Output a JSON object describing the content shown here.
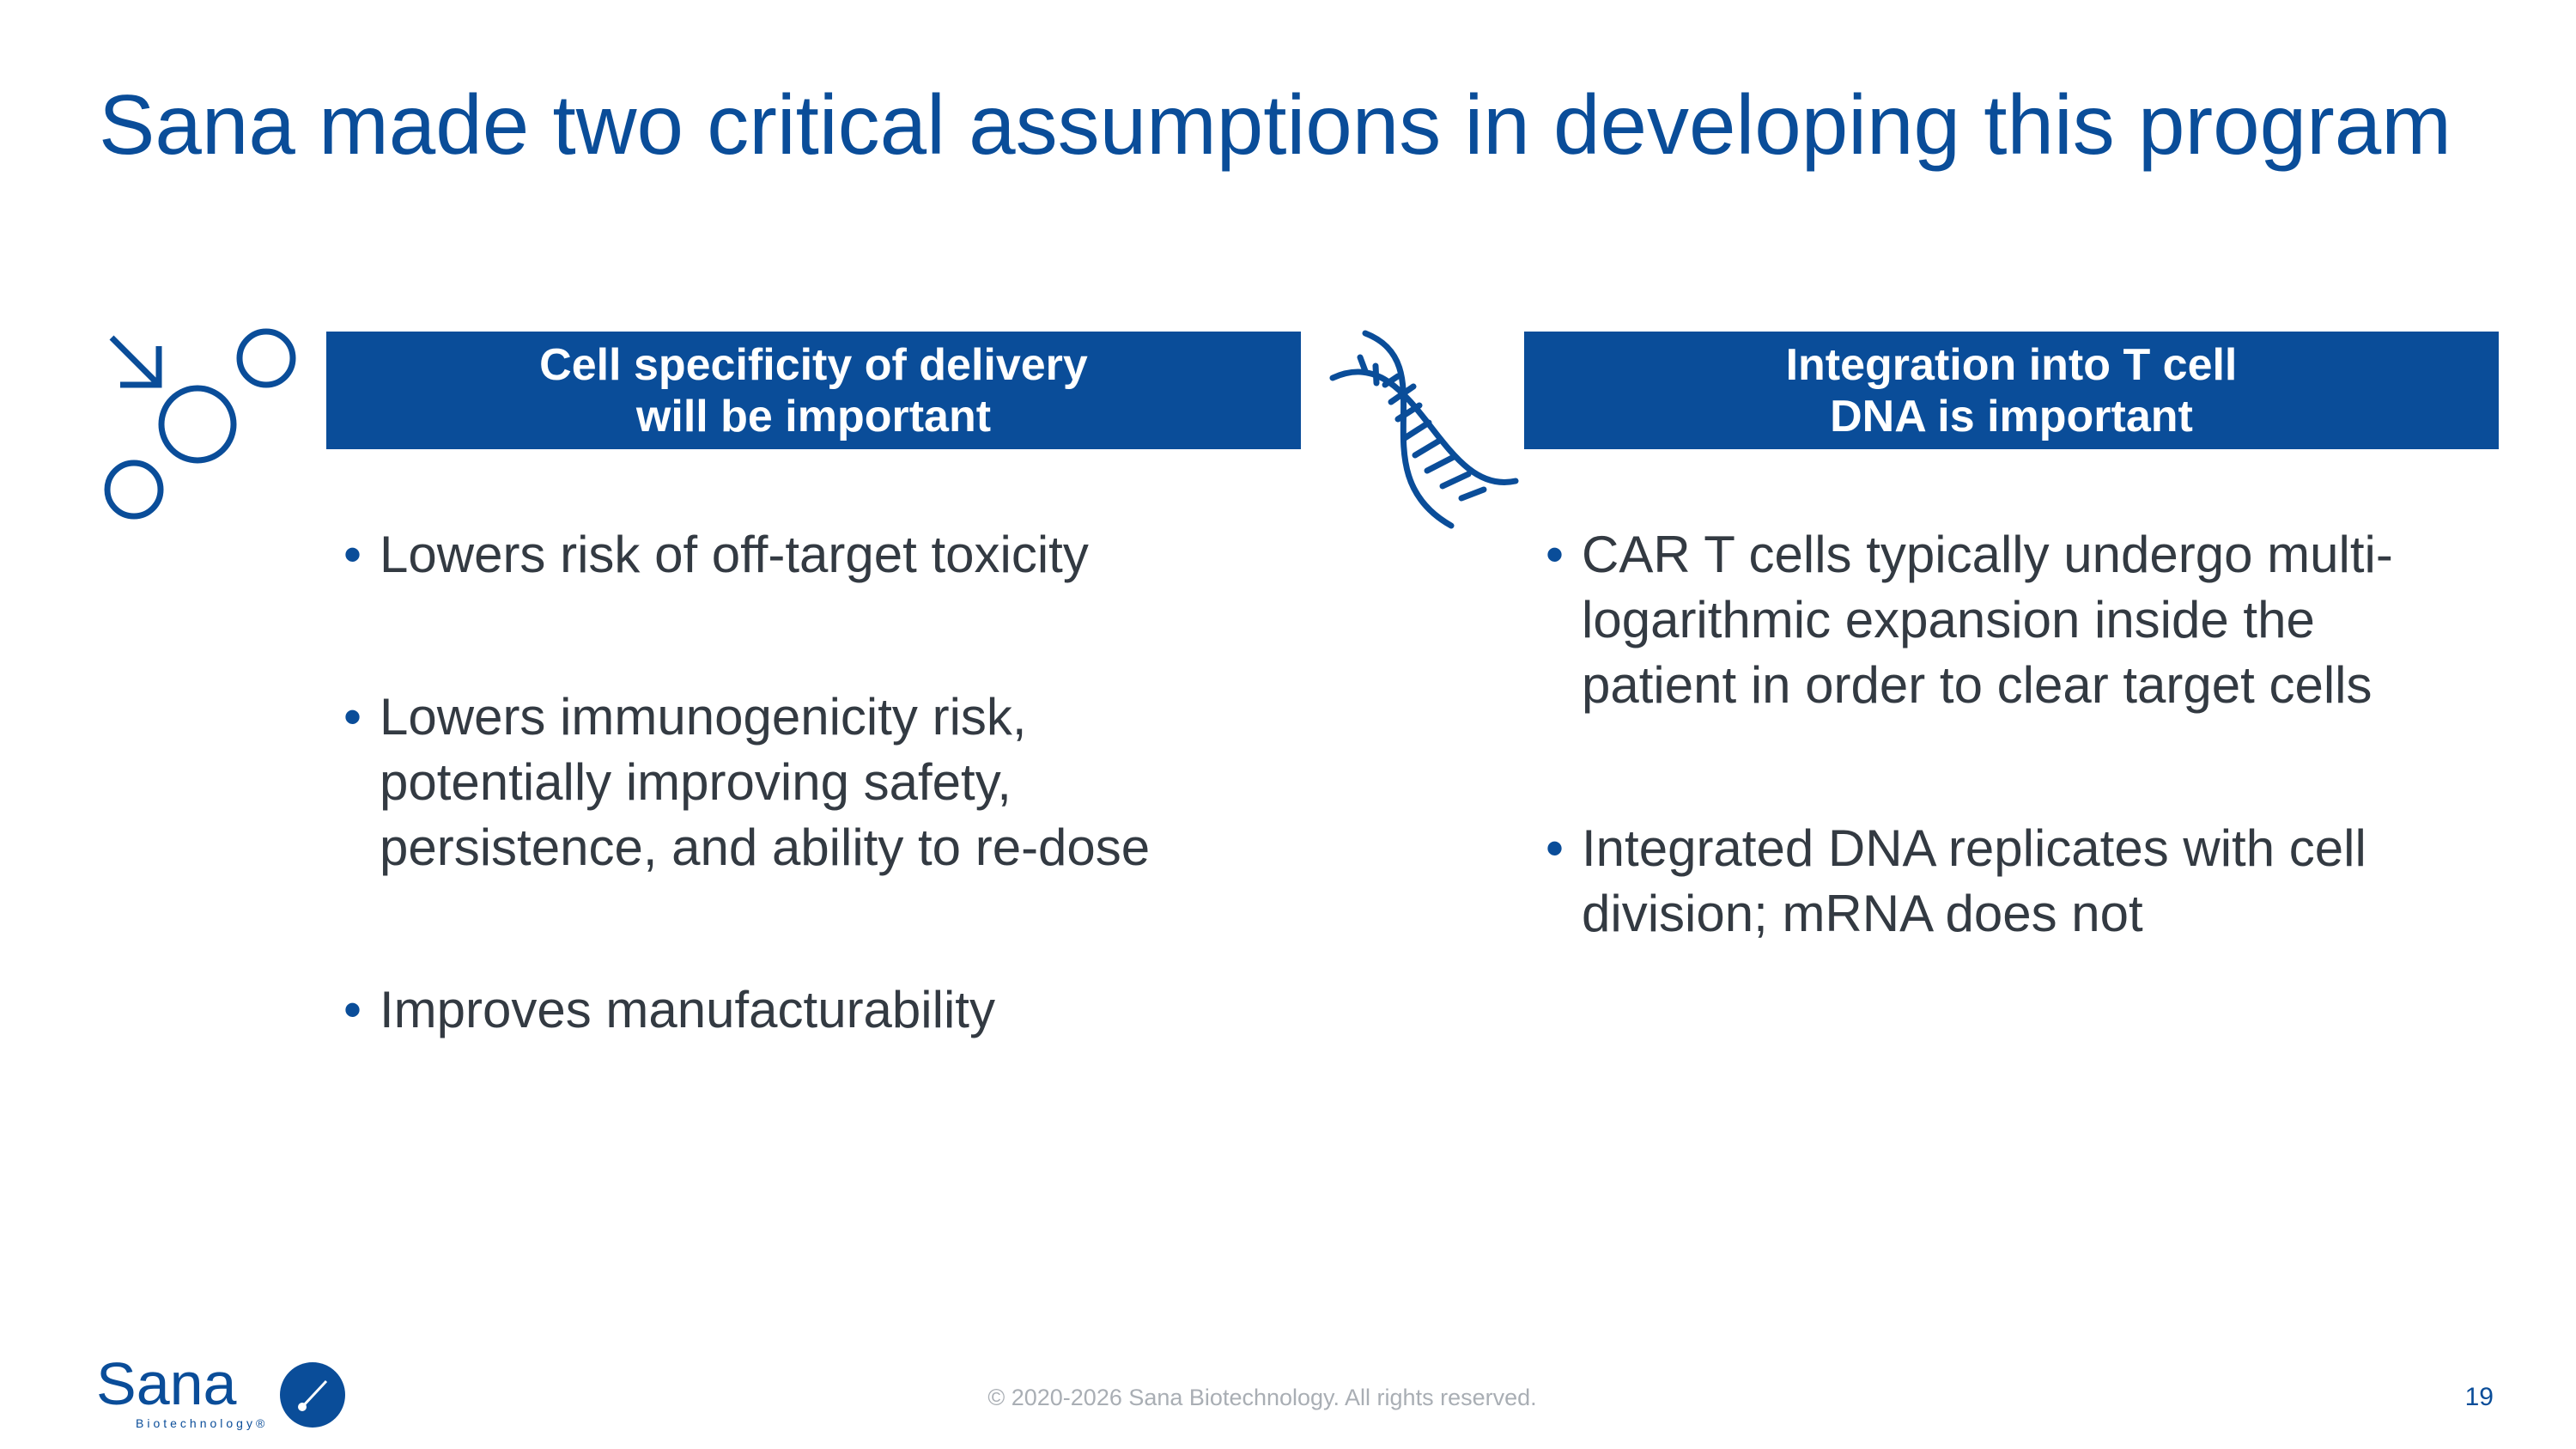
{
  "title": "Sana made two critical assumptions in developing this program",
  "columns": [
    {
      "icon": "cell-targeting-icon",
      "header_lines": [
        "Cell specificity of delivery",
        "will be important"
      ],
      "bullets": [
        [
          "Lowers risk of off-target toxicity"
        ],
        [
          "Lowers immunogenicity risk,",
          "potentially improving safety,",
          "persistence, and ability to re-dose"
        ],
        [
          "Improves manufacturability"
        ]
      ]
    },
    {
      "icon": "dna-helix-icon",
      "header_lines": [
        "Integration into T cell",
        "DNA is important"
      ],
      "bullets": [
        [
          "CAR T cells typically undergo multi-",
          "logarithmic expansion inside the",
          "patient in order to clear target cells"
        ],
        [
          "Integrated DNA replicates with cell",
          "division; mRNA does not"
        ]
      ]
    }
  ],
  "footer": {
    "copyright": "© 2020-2026 Sana Biotechnology. All rights reserved.",
    "page_number": "19"
  },
  "logo": {
    "name": "Sana",
    "subtitle": "Biotechnology®"
  },
  "colors": {
    "brand_blue": "#0a4d99",
    "body_text": "#333a42",
    "footer_gray": "#a9aeb4"
  }
}
